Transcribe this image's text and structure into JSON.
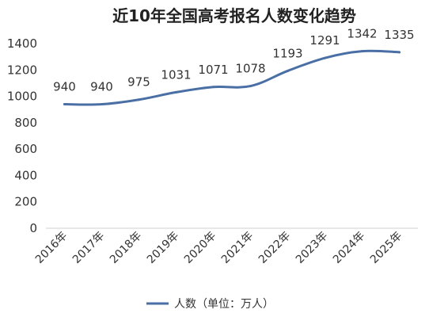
{
  "chart_data": {
    "type": "line",
    "title": "近10年全国高考报名人数变化趋势",
    "categories": [
      "2016年",
      "2017年",
      "2018年",
      "2019年",
      "2020年",
      "2021年",
      "2022年",
      "2023年",
      "2024年",
      "2025年"
    ],
    "series": [
      {
        "name": "人数（单位：万人）",
        "values": [
          940,
          940,
          975,
          1031,
          1071,
          1078,
          1193,
          1291,
          1342,
          1335
        ],
        "color": "#4a6fa5"
      }
    ],
    "y_ticks": [
      "0",
      "200",
      "400",
      "600",
      "800",
      "1000",
      "1200",
      "1400"
    ],
    "ylim": [
      0,
      1400
    ],
    "grid": false,
    "legend_position": "bottom-center",
    "data_labels": true
  }
}
